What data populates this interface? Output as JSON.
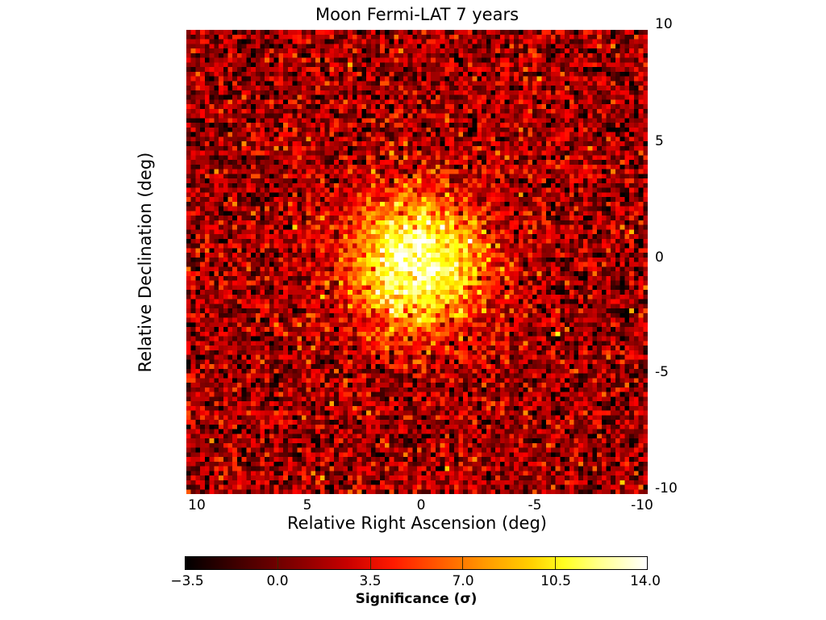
{
  "chart_data": {
    "type": "heatmap",
    "title": "Moon Fermi-LAT 7 years",
    "xlabel": "Relative Right Ascension (deg)",
    "ylabel": "Relative Declination (deg)",
    "xlim": [
      10,
      -10
    ],
    "ylim": [
      -10,
      10
    ],
    "xticks": [
      "10",
      "5",
      "0",
      "-5",
      "-10"
    ],
    "yticks": [
      "10",
      "5",
      "0",
      "-5",
      "-10"
    ],
    "colormap": "hot",
    "colorbar": {
      "label": "Significance (σ)",
      "range": [
        -3.5,
        14.0
      ],
      "ticks": [
        "−3.5",
        "0.0",
        "3.5",
        "7.0",
        "10.5",
        "14.0"
      ],
      "orientation": "horizontal"
    },
    "grid": "~100x100 pixels",
    "peak": {
      "x": 0,
      "y": 0,
      "value": 14.0
    },
    "background_level": 0.5,
    "source_width_deg": 2.0
  },
  "labels": {
    "title": "Moon Fermi-LAT 7 years",
    "xlabel": "Relative Right Ascension (deg)",
    "ylabel": "Relative Declination (deg)",
    "colorbar_label": "Significance (σ)"
  }
}
